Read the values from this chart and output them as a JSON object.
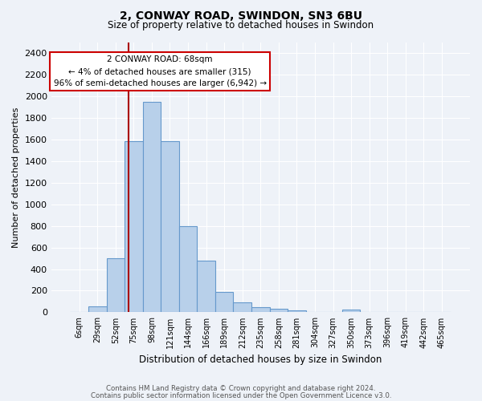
{
  "title": "2, CONWAY ROAD, SWINDON, SN3 6BU",
  "subtitle": "Size of property relative to detached houses in Swindon",
  "xlabel": "Distribution of detached houses by size in Swindon",
  "ylabel": "Number of detached properties",
  "footnote1": "Contains HM Land Registry data © Crown copyright and database right 2024.",
  "footnote2": "Contains public sector information licensed under the Open Government Licence v3.0.",
  "bar_labels": [
    "6sqm",
    "29sqm",
    "52sqm",
    "75sqm",
    "98sqm",
    "121sqm",
    "144sqm",
    "166sqm",
    "189sqm",
    "212sqm",
    "235sqm",
    "258sqm",
    "281sqm",
    "304sqm",
    "327sqm",
    "350sqm",
    "373sqm",
    "396sqm",
    "419sqm",
    "442sqm",
    "465sqm"
  ],
  "bar_values": [
    0,
    55,
    500,
    1580,
    1950,
    1580,
    800,
    480,
    190,
    90,
    45,
    30,
    20,
    0,
    0,
    25,
    0,
    0,
    0,
    0,
    0
  ],
  "bar_color": "#b8d0ea",
  "bar_edge_color": "#6699cc",
  "red_line_color": "#aa0000",
  "ylim": [
    0,
    2500
  ],
  "yticks": [
    0,
    200,
    400,
    600,
    800,
    1000,
    1200,
    1400,
    1600,
    1800,
    2000,
    2200,
    2400
  ],
  "annotation_text_line1": "2 CONWAY ROAD: 68sqm",
  "annotation_text_line2": "← 4% of detached houses are smaller (315)",
  "annotation_text_line3": "96% of semi-detached houses are larger (6,942) →",
  "annotation_box_color": "#ffffff",
  "annotation_box_edge": "#cc0000",
  "bg_color": "#eef2f8",
  "grid_color": "#ffffff",
  "red_line_bar_index": 2.7
}
